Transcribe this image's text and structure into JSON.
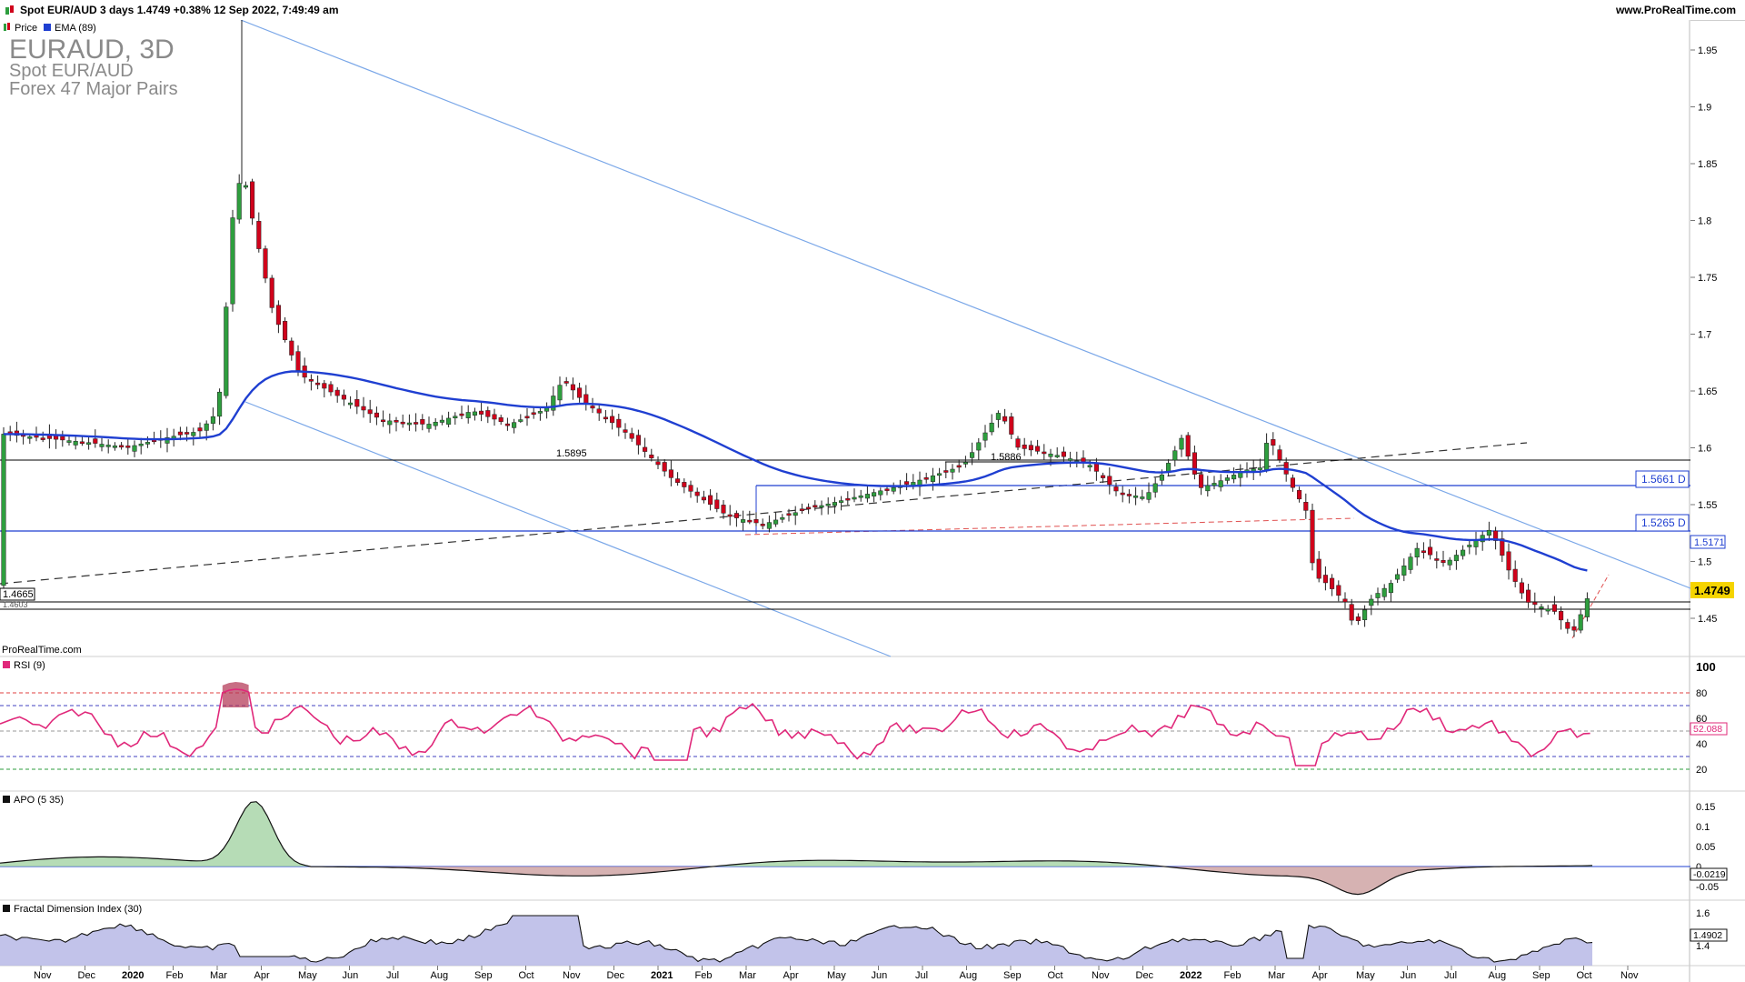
{
  "header": {
    "title": "Spot EUR/AUD 3 days 1.4749 +0.38% 12 Sep 2022, 7:49:49 am",
    "site": "www.ProRealTime.com",
    "price_icon": "candles-icon"
  },
  "main": {
    "watermark_title": "EURAUD, 3D",
    "watermark_sub1": "Spot EUR/AUD",
    "watermark_sub2": "Forex 47 Major Pairs",
    "legend_price": "Price",
    "legend_ema": "EMA (89)",
    "credit": "ProRealTime.com",
    "y_ticks": [
      "1.95",
      "1.9",
      "1.85",
      "1.8",
      "1.75",
      "1.7",
      "1.65",
      "1.6",
      "1.55",
      "1.5",
      "1.45"
    ],
    "last_price": "1.4749",
    "ema_value": "1.5171",
    "level_1": "1.5661 D",
    "level_2": "1.5265 D",
    "level_left_1": "1.4665",
    "level_left_2": "1.4603",
    "label_1895": "1.5895",
    "label_5886": "1.5886",
    "colors": {
      "bull": "#2e9e3e",
      "bear": "#d0021b",
      "ema": "#1f3fd1",
      "trend": "#7aa7e8"
    }
  },
  "rsi": {
    "legend": "RSI (9)",
    "ticks": [
      "100",
      "80",
      "60",
      "40",
      "20"
    ],
    "value": "52.088",
    "color": "#e0287a"
  },
  "apo": {
    "legend": "APO (5 35)",
    "ticks": [
      "0.15",
      "0.1",
      "0.05",
      "0",
      "-0.05"
    ],
    "value": "-0.0219"
  },
  "fdi": {
    "legend": "Fractal Dimension Index (30)",
    "ticks": [
      "1.6",
      "1.4"
    ],
    "value": "1.4902"
  },
  "x_axis": {
    "labels": [
      "Nov",
      "Dec",
      "2020",
      "Feb",
      "Mar",
      "Apr",
      "May",
      "Jun",
      "Jul",
      "Aug",
      "Sep",
      "Oct",
      "Nov",
      "Dec",
      "2021",
      "Feb",
      "Mar",
      "Apr",
      "May",
      "Jun",
      "Jul",
      "Aug",
      "Sep",
      "Oct",
      "Nov",
      "Dec",
      "2022",
      "Feb",
      "Mar",
      "Apr",
      "May",
      "Jun",
      "Jul",
      "Aug",
      "Sep",
      "Oct",
      "Nov"
    ]
  }
}
